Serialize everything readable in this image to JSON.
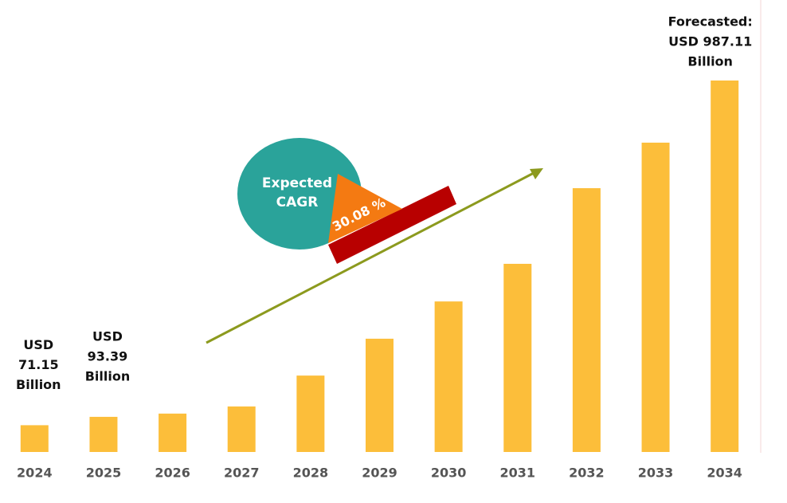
{
  "chart_data": {
    "type": "bar",
    "categories": [
      "2024",
      "2025",
      "2026",
      "2027",
      "2028",
      "2029",
      "2030",
      "2031",
      "2032",
      "2033",
      "2034"
    ],
    "values": [
      71.15,
      93.39,
      102,
      121,
      203,
      301,
      400,
      500,
      701,
      822,
      987.11
    ],
    "value_labels": [
      [
        "USD",
        "71.15",
        "Billion"
      ],
      [
        "USD",
        "93.39",
        "Billion"
      ],
      null,
      null,
      null,
      null,
      null,
      null,
      null,
      null,
      [
        "Forecasted:",
        "USD 987.11",
        "Billion"
      ]
    ],
    "color": "#fcbe3a",
    "annotations": {
      "cagr_label": "Expected CAGR",
      "cagr_value": "30.08 %"
    }
  }
}
